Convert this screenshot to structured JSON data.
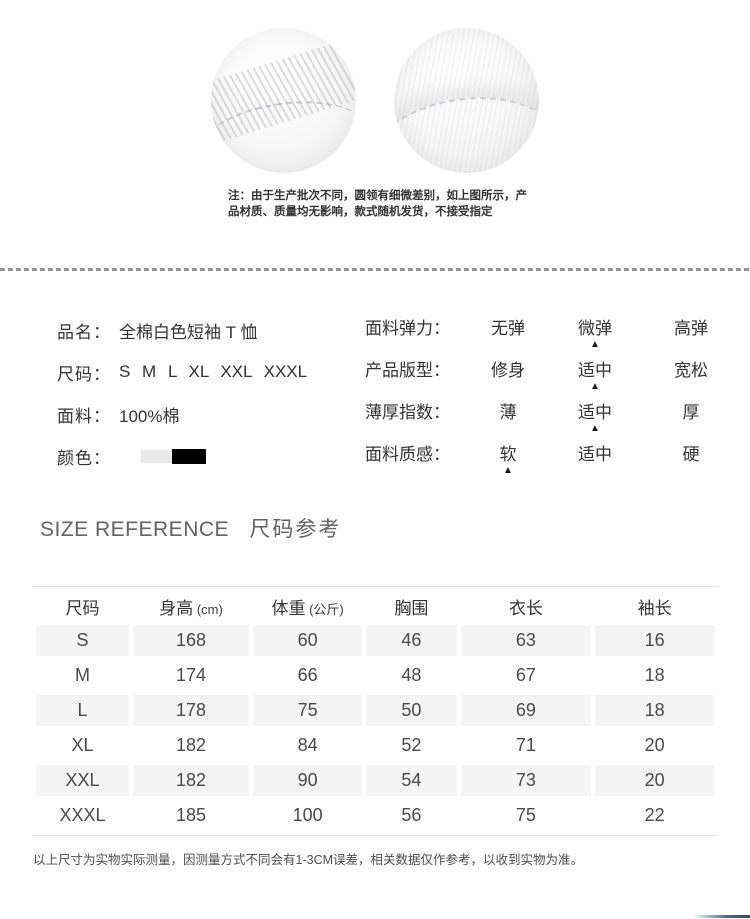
{
  "hero": {
    "note": "注：由于生产批次不同，圆领有细微差别，如上图所示，产品材质、质量均无影响，款式随机发货，不接受指定"
  },
  "product_info": {
    "name_label": "品名：",
    "name_value": "全棉白色短袖 T 恤",
    "size_label": "尺码：",
    "size_value": "S M L XL XXL XXXL",
    "fabric_label": "面料：",
    "fabric_value": "100%棉",
    "color_label": "颜色：",
    "colors": [
      "#e9e9e9",
      "#000000"
    ]
  },
  "attributes": {
    "rows": [
      {
        "label": "面料弹力：",
        "options": [
          {
            "text": "无弹",
            "marker": ""
          },
          {
            "text": "微弹",
            "marker": "▲"
          },
          {
            "text": "高弹",
            "marker": ""
          }
        ]
      },
      {
        "label": "产品版型：",
        "options": [
          {
            "text": "修身",
            "marker": ""
          },
          {
            "text": "适中",
            "marker": "▲"
          },
          {
            "text": "宽松",
            "marker": ""
          }
        ]
      },
      {
        "label": "薄厚指数：",
        "options": [
          {
            "text": "薄",
            "marker": ""
          },
          {
            "text": "适中",
            "marker": "▲"
          },
          {
            "text": "厚",
            "marker": ""
          }
        ]
      },
      {
        "label": "面料质感：",
        "options": [
          {
            "text": "软",
            "marker": "▲"
          },
          {
            "text": "适中",
            "marker": ""
          },
          {
            "text": "硬",
            "marker": ""
          }
        ]
      }
    ]
  },
  "size_reference": {
    "title_en": "SIZE REFERENCE",
    "title_zh": "尺码参考"
  },
  "size_table": {
    "headers": [
      {
        "label": "尺码",
        "unit": ""
      },
      {
        "label": "身高",
        "unit": " (cm)"
      },
      {
        "label": "体重",
        "unit": " (公斤)"
      },
      {
        "label": "胸围",
        "unit": ""
      },
      {
        "label": "衣长",
        "unit": ""
      },
      {
        "label": "袖长",
        "unit": ""
      }
    ],
    "rows": [
      [
        "S",
        "168",
        "60",
        "46",
        "63",
        "16"
      ],
      [
        "M",
        "174",
        "66",
        "48",
        "67",
        "18"
      ],
      [
        "L",
        "178",
        "75",
        "50",
        "69",
        "18"
      ],
      [
        "XL",
        "182",
        "84",
        "52",
        "71",
        "20"
      ],
      [
        "XXL",
        "182",
        "90",
        "54",
        "73",
        "20"
      ],
      [
        "XXXL",
        "185",
        "100",
        "56",
        "75",
        "22"
      ]
    ]
  },
  "footer": {
    "note": "以上尺寸为实物实际测量，因测量方式不同会有1-3CM误差，相关数据仅作参考，以收到实物为准。"
  }
}
